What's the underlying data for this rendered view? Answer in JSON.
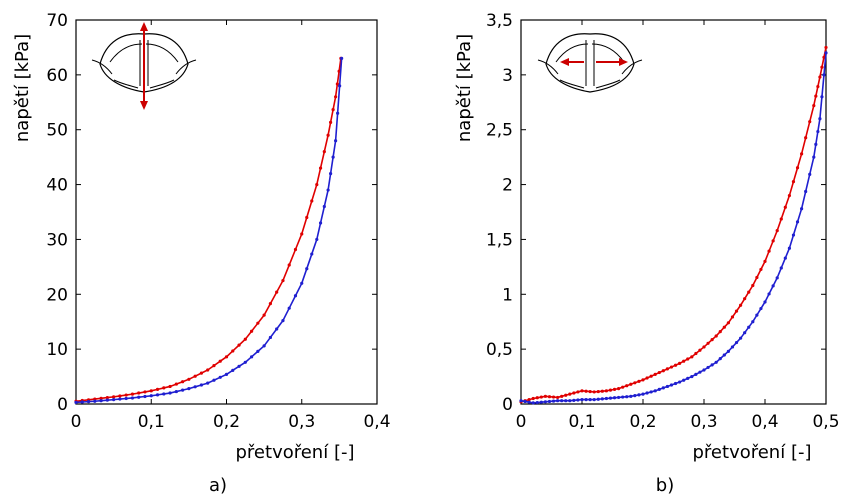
{
  "charts": [
    {
      "panel_label": "a)",
      "xlabel": "přetvoření [-]",
      "ylabel": "napětí [kPa]",
      "icon": "vocal-fold-vertical-stretch-icon",
      "arrow_color": "#cc0000"
    },
    {
      "panel_label": "b)",
      "xlabel": "přetvoření [-]",
      "ylabel": "napětí [kPa]",
      "icon": "vocal-fold-horizontal-stretch-icon",
      "arrow_color": "#cc0000"
    }
  ],
  "chart_data": [
    {
      "type": "line",
      "title": "",
      "xlabel": "přetvoření [-]",
      "ylabel": "napětí [kPa]",
      "xlim": [
        0,
        0.4
      ],
      "ylim": [
        0,
        70
      ],
      "xticks": [
        0,
        0.1,
        0.2,
        0.3,
        0.4
      ],
      "xtick_labels": [
        "0",
        "0,1",
        "0,2",
        "0,3",
        "0,4"
      ],
      "yticks": [
        0,
        10,
        20,
        30,
        40,
        50,
        60,
        70
      ],
      "ytick_labels": [
        "0",
        "10",
        "20",
        "30",
        "40",
        "50",
        "60",
        "70"
      ],
      "grid": false,
      "series": [
        {
          "color": "#e00000",
          "points": [
            [
              0,
              0.5
            ],
            [
              0.025,
              0.9
            ],
            [
              0.05,
              1.3
            ],
            [
              0.075,
              1.8
            ],
            [
              0.1,
              2.4
            ],
            [
              0.125,
              3.2
            ],
            [
              0.15,
              4.5
            ],
            [
              0.175,
              6.2
            ],
            [
              0.2,
              8.6
            ],
            [
              0.225,
              11.8
            ],
            [
              0.25,
              16.2
            ],
            [
              0.275,
              22.5
            ],
            [
              0.3,
              31
            ],
            [
              0.32,
              40
            ],
            [
              0.335,
              49
            ],
            [
              0.345,
              56
            ],
            [
              0.352,
              63
            ]
          ]
        },
        {
          "color": "#1f1fd0",
          "points": [
            [
              0,
              0.3
            ],
            [
              0.025,
              0.5
            ],
            [
              0.05,
              0.8
            ],
            [
              0.075,
              1.1
            ],
            [
              0.1,
              1.5
            ],
            [
              0.125,
              2.0
            ],
            [
              0.15,
              2.8
            ],
            [
              0.175,
              3.8
            ],
            [
              0.2,
              5.4
            ],
            [
              0.225,
              7.6
            ],
            [
              0.25,
              10.6
            ],
            [
              0.275,
              15.2
            ],
            [
              0.3,
              22
            ],
            [
              0.32,
              30
            ],
            [
              0.335,
              39
            ],
            [
              0.345,
              48
            ],
            [
              0.353,
              63
            ]
          ]
        }
      ]
    },
    {
      "type": "line",
      "title": "",
      "xlabel": "přetvoření [-]",
      "ylabel": "napětí [kPa]",
      "xlim": [
        0,
        0.5
      ],
      "ylim": [
        0,
        3.5
      ],
      "xticks": [
        0,
        0.1,
        0.2,
        0.3,
        0.4,
        0.5
      ],
      "xtick_labels": [
        "0",
        "0,1",
        "0,2",
        "0,3",
        "0,4",
        "0,5"
      ],
      "yticks": [
        0,
        0.5,
        1,
        1.5,
        2,
        2.5,
        3,
        3.5
      ],
      "ytick_labels": [
        "0",
        "0,5",
        "1",
        "1,5",
        "2",
        "2,5",
        "3",
        "3,5"
      ],
      "grid": false,
      "series": [
        {
          "color": "#e00000",
          "points": [
            [
              0,
              0.02
            ],
            [
              0.02,
              0.05
            ],
            [
              0.04,
              0.07
            ],
            [
              0.06,
              0.06
            ],
            [
              0.08,
              0.09
            ],
            [
              0.1,
              0.12
            ],
            [
              0.12,
              0.11
            ],
            [
              0.14,
              0.12
            ],
            [
              0.16,
              0.14
            ],
            [
              0.18,
              0.18
            ],
            [
              0.2,
              0.22
            ],
            [
              0.22,
              0.27
            ],
            [
              0.24,
              0.32
            ],
            [
              0.26,
              0.37
            ],
            [
              0.28,
              0.43
            ],
            [
              0.3,
              0.52
            ],
            [
              0.32,
              0.62
            ],
            [
              0.34,
              0.74
            ],
            [
              0.36,
              0.9
            ],
            [
              0.38,
              1.08
            ],
            [
              0.4,
              1.3
            ],
            [
              0.42,
              1.58
            ],
            [
              0.44,
              1.9
            ],
            [
              0.46,
              2.28
            ],
            [
              0.48,
              2.72
            ],
            [
              0.49,
              2.98
            ],
            [
              0.5,
              3.25
            ]
          ]
        },
        {
          "color": "#1f1fd0",
          "points": [
            [
              0,
              0.03
            ],
            [
              0.02,
              0.01
            ],
            [
              0.04,
              0.02
            ],
            [
              0.06,
              0.03
            ],
            [
              0.08,
              0.03
            ],
            [
              0.1,
              0.04
            ],
            [
              0.12,
              0.04
            ],
            [
              0.14,
              0.05
            ],
            [
              0.16,
              0.06
            ],
            [
              0.18,
              0.07
            ],
            [
              0.2,
              0.09
            ],
            [
              0.22,
              0.12
            ],
            [
              0.24,
              0.16
            ],
            [
              0.26,
              0.2
            ],
            [
              0.28,
              0.25
            ],
            [
              0.3,
              0.31
            ],
            [
              0.32,
              0.38
            ],
            [
              0.34,
              0.48
            ],
            [
              0.36,
              0.6
            ],
            [
              0.38,
              0.75
            ],
            [
              0.4,
              0.93
            ],
            [
              0.42,
              1.15
            ],
            [
              0.44,
              1.42
            ],
            [
              0.46,
              1.78
            ],
            [
              0.48,
              2.25
            ],
            [
              0.49,
              2.6
            ],
            [
              0.5,
              3.2
            ]
          ]
        }
      ]
    }
  ]
}
